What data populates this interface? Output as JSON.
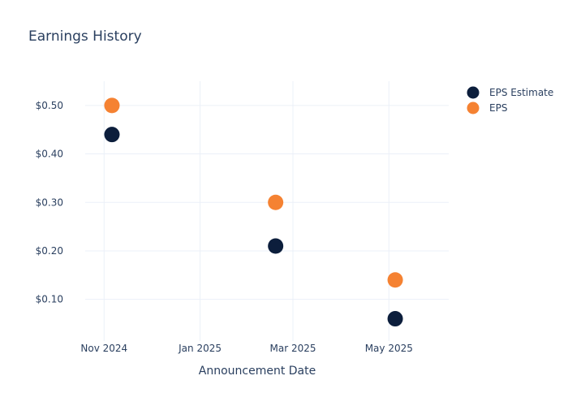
{
  "chart_data": {
    "type": "scatter",
    "title": "Earnings History",
    "xlabel": "Announcement Date",
    "ylabel": "",
    "x_axis_type": "date",
    "x_range": [
      "2024-10-20",
      "2025-06-08"
    ],
    "x_ticks": [
      {
        "value": "2024-11-01",
        "label": "Nov 2024"
      },
      {
        "value": "2025-01-01",
        "label": "Jan 2025"
      },
      {
        "value": "2025-03-01",
        "label": "Mar 2025"
      },
      {
        "value": "2025-05-01",
        "label": "May 2025"
      }
    ],
    "ylim": [
      0.014,
      0.55
    ],
    "y_ticks": [
      {
        "value": 0.1,
        "label": "$0.10"
      },
      {
        "value": 0.2,
        "label": "$0.20"
      },
      {
        "value": 0.3,
        "label": "$0.30"
      },
      {
        "value": 0.4,
        "label": "$0.40"
      },
      {
        "value": 0.5,
        "label": "$0.50"
      }
    ],
    "grid": true,
    "legend_position": "top-right",
    "series": [
      {
        "name": "EPS Estimate",
        "color": "#0c1e3c",
        "points": [
          {
            "x": "2024-11-06",
            "y": 0.44
          },
          {
            "x": "2025-02-18",
            "y": 0.21
          },
          {
            "x": "2025-05-05",
            "y": 0.06
          }
        ]
      },
      {
        "name": "EPS",
        "color": "#f58232",
        "points": [
          {
            "x": "2024-11-06",
            "y": 0.5
          },
          {
            "x": "2025-02-18",
            "y": 0.3
          },
          {
            "x": "2025-05-05",
            "y": 0.14
          }
        ]
      }
    ]
  }
}
